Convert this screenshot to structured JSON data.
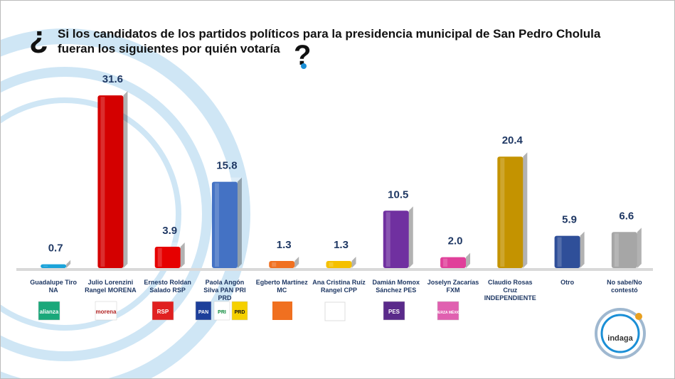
{
  "chart_data": {
    "type": "bar",
    "question_open": "¿",
    "title": "Si los candidatos de los partidos políticos para la presidencia municipal de San Pedro Cholula fueran los siguientes por quién votaría",
    "question_close": "?",
    "categories": [
      "Guadalupe Tiro NA",
      "Julio Lorenzini Rangel MORENA",
      "Ernesto Roldan Salado RSP",
      "Paola Angón Silva PAN PRI PRD",
      "Egberto Martínez MC",
      "Ana Cristina Ruíz Rangel CPP",
      "Damián Momox Sánchez PES",
      "Joselyn Zacarías FXM",
      "Claudio Rosas Cruz INDEPENDIENTE",
      "Otro",
      "No sabe/No contestó"
    ],
    "values": [
      0.7,
      31.6,
      3.9,
      15.8,
      1.3,
      1.3,
      10.5,
      2.0,
      20.4,
      5.9,
      6.6
    ],
    "value_labels": [
      "0.7",
      "31.6",
      "3.9",
      "15.8",
      "1.3",
      "1.3",
      "10.5",
      "2.0",
      "20.4",
      "5.9",
      "6.6"
    ],
    "colors": [
      "#1ba3d9",
      "#d40000",
      "#e60000",
      "#4472c4",
      "#f07020",
      "#f5c000",
      "#7030a0",
      "#e0409a",
      "#c49300",
      "#2f4f99",
      "#a6a6a6"
    ],
    "ylim": [
      0,
      35
    ],
    "logos": [
      "alianza",
      "morena",
      "RSP",
      "PAN",
      "PRI",
      "PRD",
      "PES",
      "FUERZA MÉXICO"
    ],
    "brand": "indaga"
  }
}
